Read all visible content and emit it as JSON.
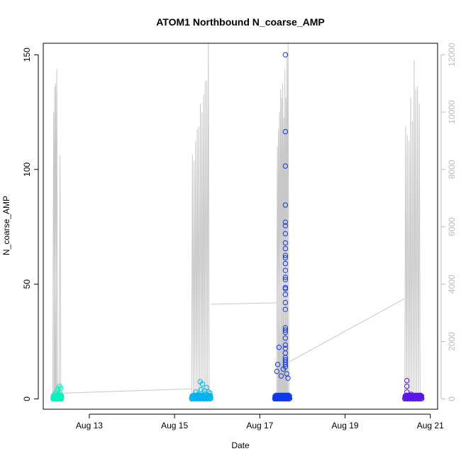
{
  "chart_data": {
    "type": "scatter",
    "title": "ATOM1 Northbound N_coarse_AMP",
    "xlabel": "Date",
    "ylabel": "N_coarse_AMP",
    "x_ticks": [
      "Aug 13",
      "Aug 15",
      "Aug 17",
      "Aug 19",
      "Aug 21"
    ],
    "x_tick_days": [
      13,
      15,
      17,
      19,
      21
    ],
    "xlim_days": [
      11.92,
      21.17
    ],
    "ylim": [
      -4.5,
      155
    ],
    "y_ticks": [
      0,
      50,
      100,
      150
    ],
    "y2lim": [
      -360,
      12400
    ],
    "y2_ticks": [
      0,
      2000,
      4000,
      6000,
      8000,
      10000,
      12000
    ],
    "grid": false,
    "overlay_line": {
      "axis": "right",
      "color": "#c8c8c8",
      "bursts": [
        {
          "start": 12.15,
          "end": 12.35,
          "peaks": [
            10000,
            10900,
            11000,
            11500,
            0,
            0,
            8500,
            0
          ]
        },
        {
          "start": 15.4,
          "end": 15.85,
          "peaks": [
            8500,
            8300,
            9000,
            9400,
            9500,
            10300,
            10000,
            10600,
            11100,
            11100,
            12400,
            0
          ]
        },
        {
          "start": 17.4,
          "end": 17.7,
          "peaks": [
            8800,
            9400,
            10000,
            10800,
            10500,
            11000,
            9800,
            11500,
            10500,
            12100,
            12400,
            0
          ]
        },
        {
          "start": 20.4,
          "end": 20.8,
          "peaks": [
            9500,
            9200,
            9000,
            10500,
            9700,
            11800,
            10800,
            10900,
            10300,
            0
          ]
        }
      ],
      "connectors": [
        {
          "from": [
            12.33,
            200
          ],
          "to": [
            15.4,
            350
          ]
        },
        {
          "from": [
            15.85,
            3300
          ],
          "to": [
            17.4,
            3350
          ]
        },
        {
          "from": [
            17.7,
            1300
          ],
          "to": [
            20.4,
            3500
          ]
        }
      ]
    },
    "series": [
      {
        "color": "#00f5c0",
        "day_start": 12.15,
        "day_end": 12.35,
        "points": [
          [
            12.18,
            0.5
          ],
          [
            12.2,
            2.5
          ],
          [
            12.22,
            1.5
          ],
          [
            12.24,
            3.5
          ],
          [
            12.25,
            0.8
          ],
          [
            12.27,
            4.5
          ],
          [
            12.29,
            2.2
          ],
          [
            12.3,
            5.5
          ],
          [
            12.31,
            3
          ],
          [
            12.32,
            1.5
          ],
          [
            12.33,
            4.8
          ]
        ]
      },
      {
        "color": "#00b4f0",
        "day_start": 15.4,
        "day_end": 15.85,
        "points": [
          [
            15.45,
            1
          ],
          [
            15.5,
            3
          ],
          [
            15.55,
            2
          ],
          [
            15.6,
            7.5
          ],
          [
            15.62,
            4
          ],
          [
            15.65,
            6.5
          ],
          [
            15.7,
            3.5
          ],
          [
            15.72,
            2.2
          ],
          [
            15.75,
            5
          ],
          [
            15.8,
            3
          ],
          [
            15.83,
            2.5
          ]
        ]
      },
      {
        "color": "#1038ec",
        "day_start": 17.35,
        "day_end": 17.7,
        "points": [
          [
            17.6,
            150
          ],
          [
            17.6,
            116.5
          ],
          [
            17.6,
            101.5
          ],
          [
            17.6,
            84.5
          ],
          [
            17.6,
            77
          ],
          [
            17.6,
            75.5
          ],
          [
            17.6,
            72
          ],
          [
            17.6,
            68
          ],
          [
            17.6,
            65.5
          ],
          [
            17.6,
            62.5
          ],
          [
            17.6,
            61.5
          ],
          [
            17.6,
            59
          ],
          [
            17.6,
            56
          ],
          [
            17.6,
            53
          ],
          [
            17.6,
            52
          ],
          [
            17.6,
            48.5
          ],
          [
            17.6,
            48
          ],
          [
            17.6,
            45.5
          ],
          [
            17.6,
            42
          ],
          [
            17.6,
            39
          ],
          [
            17.6,
            31
          ],
          [
            17.6,
            30
          ],
          [
            17.6,
            29
          ],
          [
            17.6,
            26.5
          ],
          [
            17.6,
            23.5
          ],
          [
            17.6,
            22
          ],
          [
            17.6,
            20
          ],
          [
            17.6,
            18
          ],
          [
            17.6,
            17
          ],
          [
            17.6,
            16
          ],
          [
            17.6,
            15
          ],
          [
            17.6,
            14
          ],
          [
            17.45,
            22.5
          ],
          [
            17.42,
            15
          ],
          [
            17.4,
            12
          ],
          [
            17.5,
            10
          ],
          [
            17.55,
            13
          ],
          [
            17.63,
            11
          ],
          [
            17.66,
            9
          ]
        ]
      },
      {
        "color": "#5a18e6",
        "day_start": 20.4,
        "day_end": 20.8,
        "points": [
          [
            20.45,
            8
          ],
          [
            20.45,
            5.5
          ],
          [
            20.45,
            3
          ],
          [
            20.5,
            1.5
          ],
          [
            20.55,
            2
          ],
          [
            20.6,
            1
          ],
          [
            20.65,
            1.2
          ],
          [
            20.7,
            1
          ],
          [
            20.75,
            1.5
          ],
          [
            20.78,
            1
          ]
        ]
      }
    ]
  }
}
